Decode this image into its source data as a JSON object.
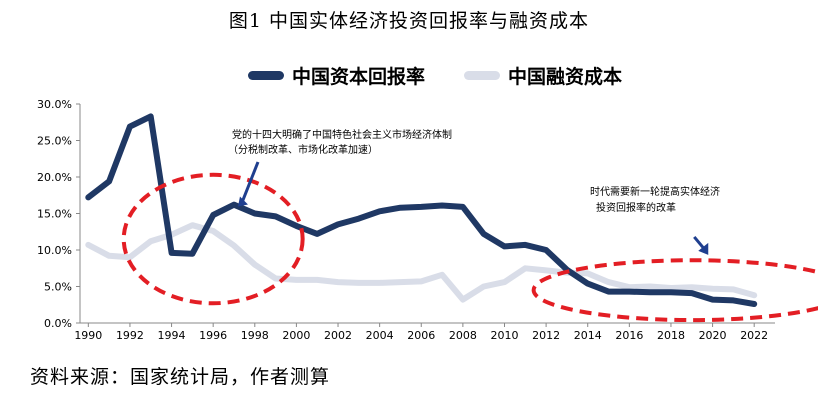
{
  "title": "图1  中国实体经济投资回报率与融资成本",
  "source": "资料来源：国家统计局，作者测算",
  "chart_data": {
    "type": "line",
    "xlim": [
      1989.6,
      2023
    ],
    "ylim": [
      0,
      30
    ],
    "x_ticks": [
      1990,
      1992,
      1994,
      1996,
      1998,
      2000,
      2002,
      2004,
      2006,
      2008,
      2010,
      2012,
      2014,
      2016,
      2018,
      2020,
      2022
    ],
    "y_ticks": [
      0,
      5,
      10,
      15,
      20,
      25,
      30
    ],
    "y_tick_labels": [
      "0.0%",
      "5.0%",
      "10.0%",
      "15.0%",
      "20.0%",
      "25.0%",
      "30.0%"
    ],
    "grid": false,
    "legend": "top-center",
    "series": [
      {
        "name": "中国资本回报率",
        "color": "#1f3864",
        "x": [
          1990,
          1991,
          1992,
          1993,
          1994,
          1995,
          1996,
          1997,
          1998,
          1999,
          2000,
          2001,
          2002,
          2003,
          2004,
          2005,
          2006,
          2007,
          2008,
          2009,
          2010,
          2011,
          2012,
          2013,
          2014,
          2015,
          2016,
          2017,
          2018,
          2019,
          2020,
          2021,
          2022
        ],
        "values": [
          17.2,
          19.4,
          26.9,
          28.3,
          9.6,
          9.5,
          14.8,
          16.2,
          15.0,
          14.6,
          13.3,
          12.2,
          13.5,
          14.3,
          15.3,
          15.8,
          15.9,
          16.1,
          15.9,
          12.2,
          10.5,
          10.7,
          10.0,
          7.3,
          5.4,
          4.3,
          4.3,
          4.2,
          4.2,
          4.1,
          3.2,
          3.1,
          2.6
        ]
      },
      {
        "name": "中国融资成本",
        "color": "#d9dde8",
        "x": [
          1990,
          1991,
          1992,
          1993,
          1994,
          1995,
          1996,
          1997,
          1998,
          1999,
          2000,
          2001,
          2002,
          2003,
          2004,
          2005,
          2006,
          2007,
          2008,
          2009,
          2010,
          2011,
          2012,
          2013,
          2014,
          2015,
          2016,
          2017,
          2018,
          2019,
          2020,
          2021,
          2022
        ],
        "values": [
          10.7,
          9.2,
          9.0,
          11.2,
          12.1,
          13.4,
          12.6,
          10.6,
          8.0,
          6.1,
          5.9,
          5.9,
          5.6,
          5.5,
          5.5,
          5.6,
          5.7,
          6.6,
          3.2,
          5.0,
          5.6,
          7.5,
          7.2,
          6.9,
          6.8,
          5.6,
          4.9,
          5.0,
          4.8,
          4.9,
          4.7,
          4.6,
          3.8
        ]
      }
    ],
    "annotations": [
      {
        "lines": [
          "党的十四大明确了中国特色社会主义市场经济体制",
          "（分税制改革、市场化改革加速）"
        ],
        "x": 1997,
        "y": 16.5
      },
      {
        "lines": [
          "时代需要新一轮提高实体经济",
          "投资回报率的改革"
        ],
        "x": 2019.6,
        "y": 9.6
      }
    ],
    "highlights": [
      {
        "color": "#e31e24",
        "cx": 1996,
        "cy": 11.5,
        "rx_years": 4.3,
        "ry_pct": 8.8
      },
      {
        "color": "#e31e24",
        "cx": 2019,
        "cy": 4.5,
        "rx_years": 7.6,
        "ry_pct": 4.1
      }
    ]
  }
}
